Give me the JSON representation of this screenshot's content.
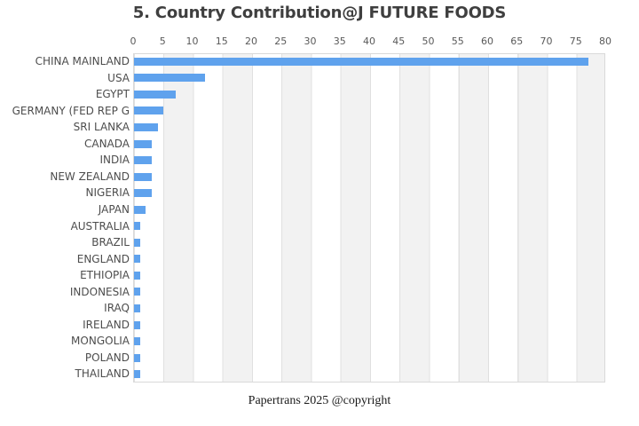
{
  "header": {
    "title": "5. Country Contribution@J FUTURE FOODS"
  },
  "footer": {
    "text": "Papertrans 2025 @copyright"
  },
  "colors": {
    "bar": "#5FA2ED",
    "band": "#F2F2F2",
    "gridline": "#E0E0E0",
    "plot_border": "#D9D9D9",
    "title_text": "#3F3F3F",
    "y_label_text": "#4D4D4D",
    "x_tick_text": "#595959",
    "footer_text": "#1A1A1A"
  },
  "chart_data": {
    "type": "bar",
    "orientation": "horizontal",
    "title": "5. Country Contribution@J FUTURE FOODS",
    "xlabel": "",
    "ylabel": "",
    "xlim": [
      0,
      80
    ],
    "xtick_step": 5,
    "grid": "vertical alternating bands, ticks on top",
    "legend_position": "none",
    "categories": [
      "CHINA MAINLAND",
      "USA",
      "EGYPT",
      "GERMANY (FED REP G",
      "SRI LANKA",
      "CANADA",
      "INDIA",
      "NEW ZEALAND",
      "NIGERIA",
      "JAPAN",
      "AUSTRALIA",
      "BRAZIL",
      "ENGLAND",
      "ETHIOPIA",
      "INDONESIA",
      "IRAQ",
      "IRELAND",
      "MONGOLIA",
      "POLAND",
      "THAILAND"
    ],
    "values": [
      77,
      12,
      7,
      5,
      4,
      3,
      3,
      3,
      3,
      2,
      1,
      1,
      1,
      1,
      1,
      1,
      1,
      1,
      1,
      1
    ]
  }
}
